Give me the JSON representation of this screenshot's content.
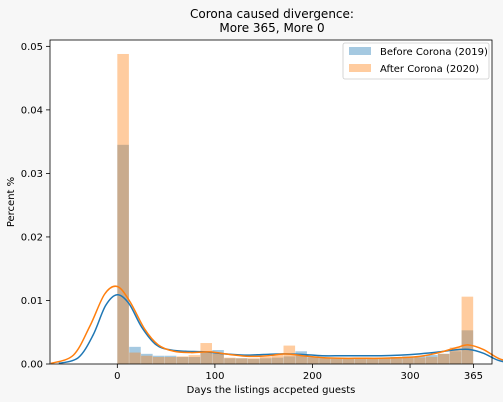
{
  "chart_data": {
    "type": "histogram-kde",
    "title_lines": [
      "Corona caused divergence:",
      "More 365, More 0"
    ],
    "xlabel": "Days the listings accpeted guests",
    "ylabel": "Percent %",
    "xlim": [
      -69,
      384
    ],
    "ylim": [
      0,
      0.051
    ],
    "xticks": [
      0,
      100,
      200,
      300,
      365
    ],
    "yticks": [
      0.0,
      0.01,
      0.02,
      0.03,
      0.04,
      0.05
    ],
    "ytick_labels": [
      "0.00",
      "0.01",
      "0.02",
      "0.03",
      "0.04",
      "0.05"
    ],
    "legend": {
      "position": "top-right"
    },
    "bin_edges": [
      0,
      12.17,
      24.33,
      36.5,
      48.67,
      60.83,
      73,
      85.17,
      97.33,
      109.5,
      121.67,
      133.83,
      146,
      158.17,
      170.33,
      182.5,
      194.67,
      206.83,
      219,
      231.17,
      243.33,
      255.5,
      267.67,
      279.83,
      292,
      304.17,
      316.33,
      328.5,
      340.67,
      352.83,
      365
    ],
    "series": [
      {
        "name": "Before Corona (2019)",
        "color": "#1f77b4",
        "bar_fill": "#a7c7df",
        "density": [
          0.0345,
          0.0027,
          0.0016,
          0.0013,
          0.0013,
          0.0011,
          0.0011,
          0.002,
          0.0022,
          0.0009,
          0.0009,
          0.0008,
          0.0009,
          0.001,
          0.0012,
          0.002,
          0.0012,
          0.001,
          0.001,
          0.0009,
          0.001,
          0.001,
          0.001,
          0.0011,
          0.0012,
          0.0012,
          0.0014,
          0.0016,
          0.002,
          0.0053
        ],
        "kde": [
          [
            -60,
            0.0001
          ],
          [
            -40,
            0.001
          ],
          [
            -25,
            0.0045
          ],
          [
            -12,
            0.0092
          ],
          [
            0,
            0.0109
          ],
          [
            12,
            0.0095
          ],
          [
            25,
            0.0058
          ],
          [
            40,
            0.003
          ],
          [
            55,
            0.0022
          ],
          [
            70,
            0.002
          ],
          [
            90,
            0.0019
          ],
          [
            110,
            0.0016
          ],
          [
            130,
            0.0014
          ],
          [
            150,
            0.0015
          ],
          [
            170,
            0.0016
          ],
          [
            190,
            0.0015
          ],
          [
            210,
            0.0013
          ],
          [
            230,
            0.0013
          ],
          [
            250,
            0.0013
          ],
          [
            270,
            0.0013
          ],
          [
            290,
            0.0014
          ],
          [
            310,
            0.0016
          ],
          [
            330,
            0.0019
          ],
          [
            345,
            0.0022
          ],
          [
            360,
            0.0023
          ],
          [
            375,
            0.0017
          ],
          [
            390,
            0.0006
          ],
          [
            405,
            0.0001
          ]
        ]
      },
      {
        "name": "After Corona (2020)",
        "color": "#ff7f0e",
        "bar_fill": "#fdc89a",
        "density": [
          0.0488,
          0.0018,
          0.0013,
          0.0011,
          0.0011,
          0.0012,
          0.0014,
          0.0033,
          0.0016,
          0.001,
          0.0009,
          0.0009,
          0.0011,
          0.0015,
          0.0029,
          0.0013,
          0.001,
          0.0009,
          0.0008,
          0.0008,
          0.0008,
          0.0009,
          0.0009,
          0.0009,
          0.001,
          0.001,
          0.0011,
          0.0016,
          0.0026,
          0.0106
        ],
        "kde": [
          [
            -68,
            0.0001
          ],
          [
            -45,
            0.0014
          ],
          [
            -28,
            0.006
          ],
          [
            -13,
            0.011
          ],
          [
            0,
            0.0122
          ],
          [
            13,
            0.0098
          ],
          [
            28,
            0.0055
          ],
          [
            42,
            0.003
          ],
          [
            58,
            0.002
          ],
          [
            75,
            0.0018
          ],
          [
            95,
            0.0019
          ],
          [
            115,
            0.0015
          ],
          [
            135,
            0.0012
          ],
          [
            155,
            0.0013
          ],
          [
            172,
            0.0016
          ],
          [
            190,
            0.0013
          ],
          [
            210,
            0.001
          ],
          [
            230,
            0.0009
          ],
          [
            250,
            0.0009
          ],
          [
            270,
            0.0009
          ],
          [
            290,
            0.001
          ],
          [
            310,
            0.0012
          ],
          [
            330,
            0.0018
          ],
          [
            348,
            0.0026
          ],
          [
            360,
            0.003
          ],
          [
            375,
            0.0023
          ],
          [
            392,
            0.0008
          ],
          [
            410,
            0.0002
          ]
        ]
      }
    ]
  }
}
